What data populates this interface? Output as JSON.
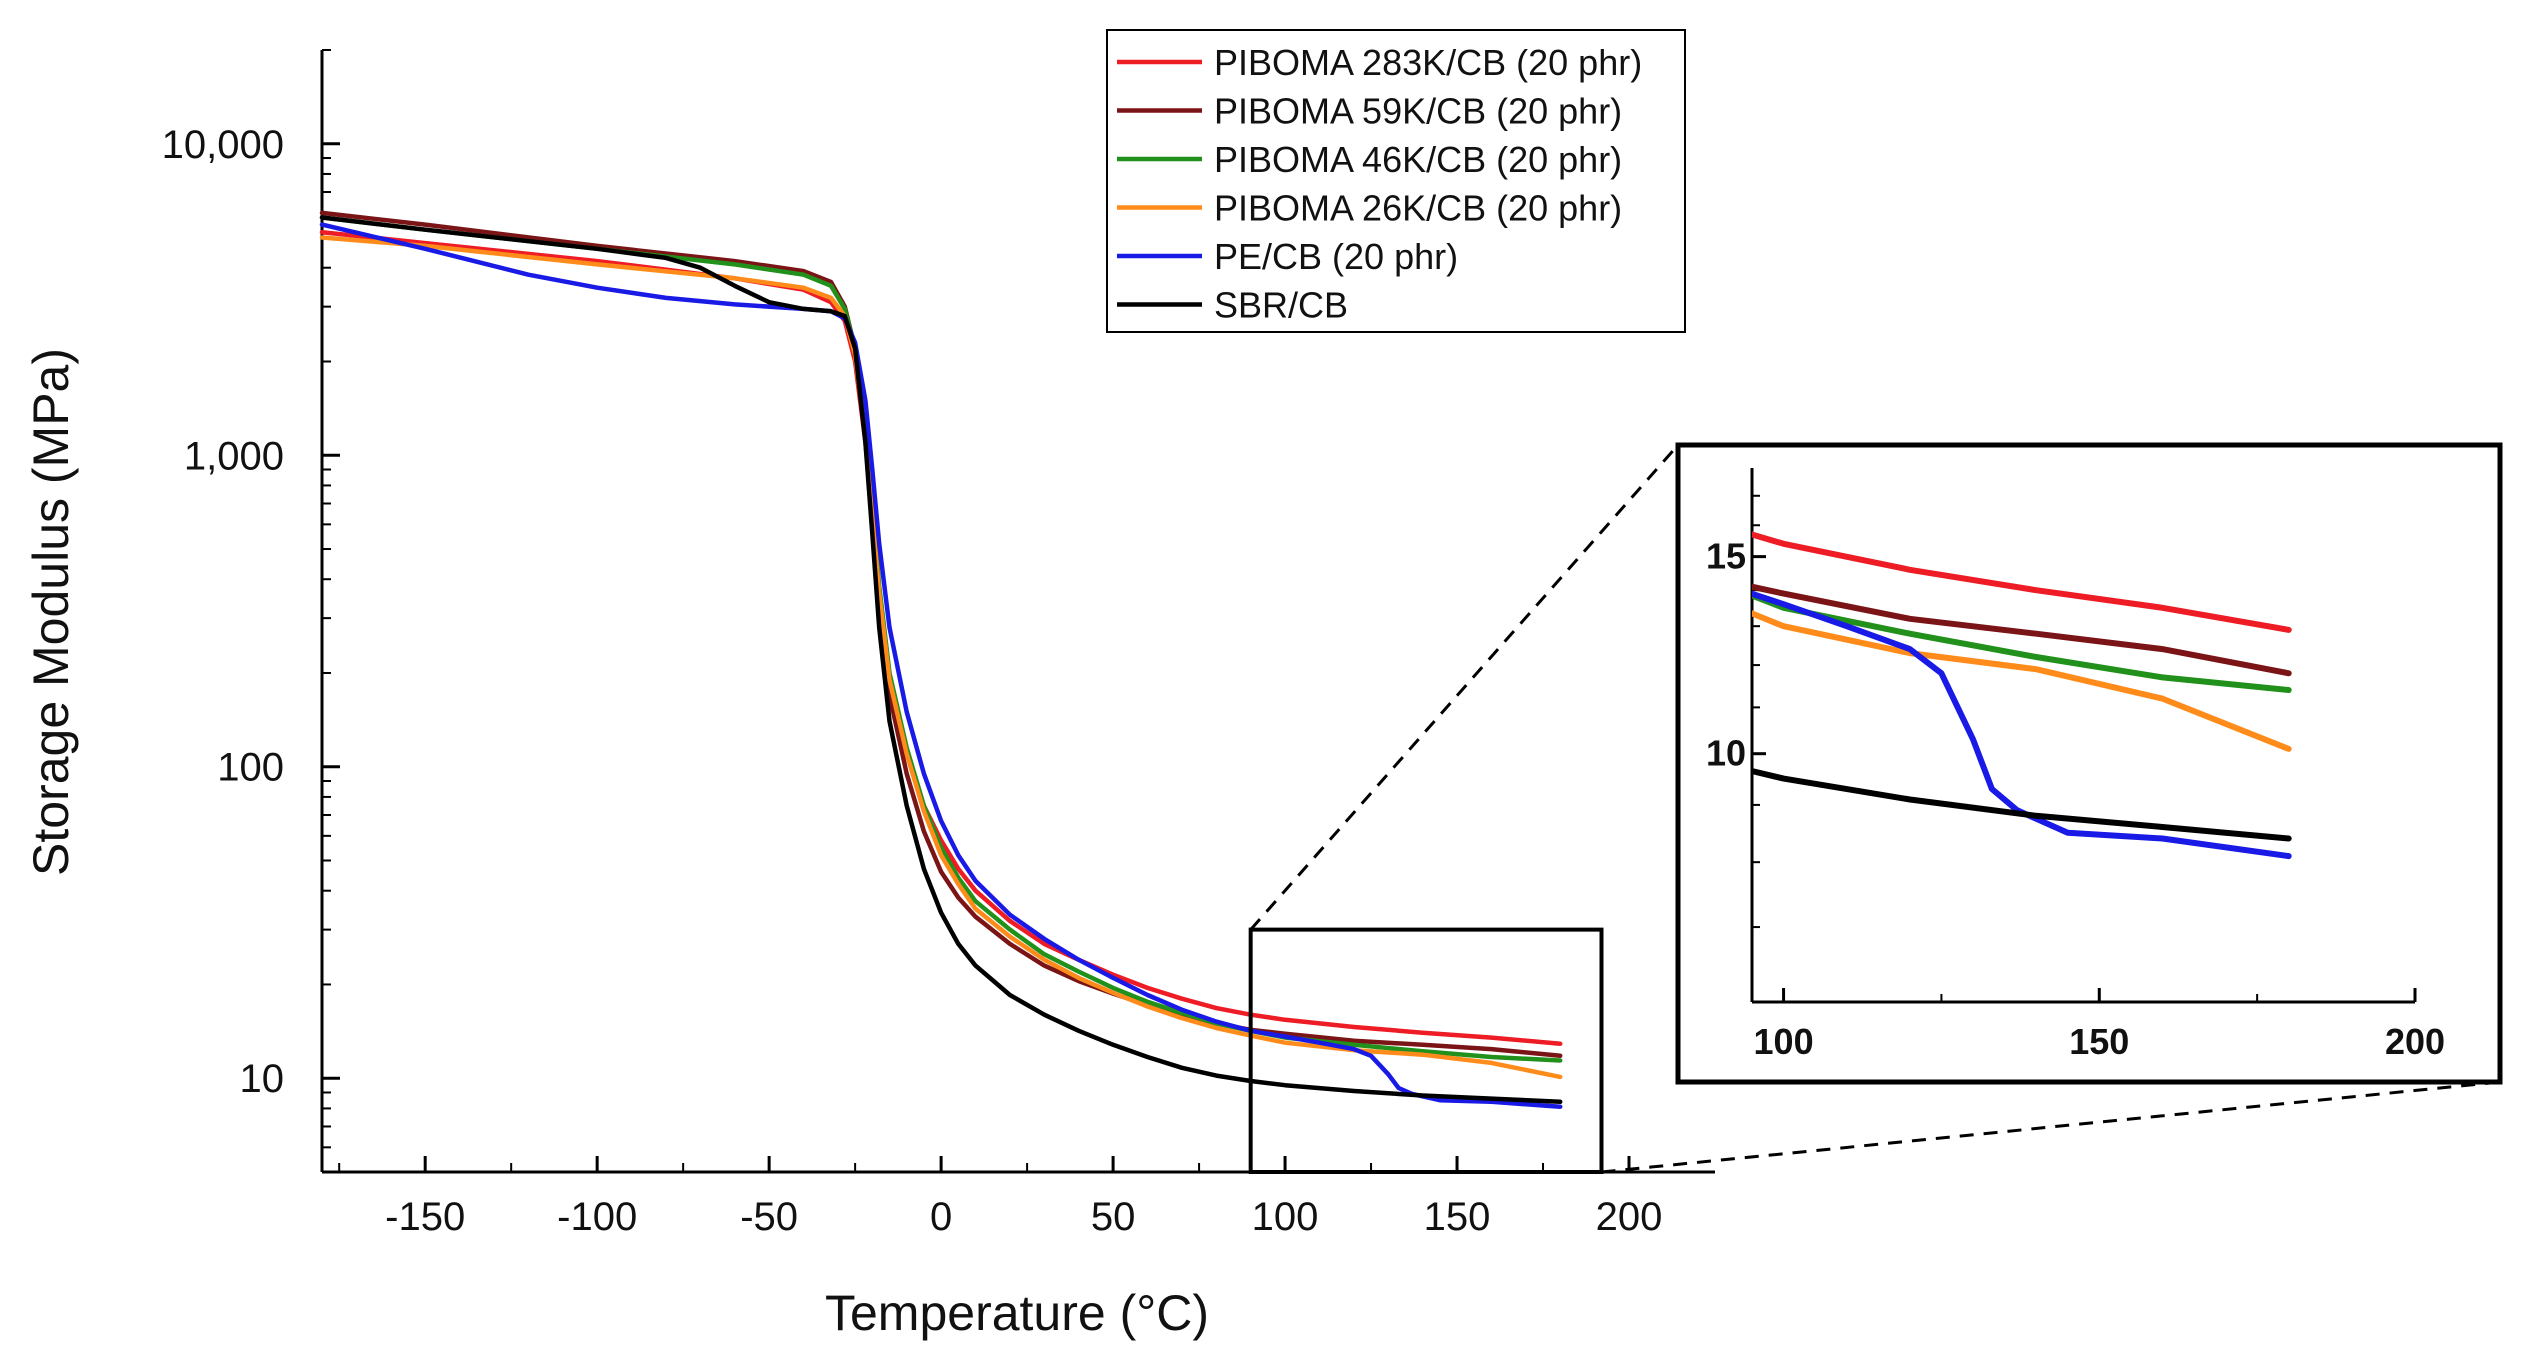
{
  "chart_data": {
    "type": "line",
    "title": "",
    "xlabel": "Temperature (°C)",
    "ylabel": "Storage Modulus (MPa)",
    "xlim": [
      -180,
      225
    ],
    "ylim": [
      5,
      20000
    ],
    "yscale": "log",
    "xticks": [
      -150,
      -100,
      -50,
      0,
      50,
      100,
      150,
      200
    ],
    "xtick_labels": [
      "-150",
      "-100",
      "-50",
      "0",
      "50",
      "100",
      "150",
      "200"
    ],
    "yticks": [
      10,
      100,
      1000,
      10000
    ],
    "ytick_labels": [
      "10",
      "100",
      "1,000",
      "10,000"
    ],
    "legend_position": "top-center",
    "series": [
      {
        "name": "PIBOMA 283K/CB (20 phr)",
        "color": "#ee1c25",
        "points": [
          [
            -180,
            5200
          ],
          [
            -150,
            4800
          ],
          [
            -100,
            4200
          ],
          [
            -60,
            3700
          ],
          [
            -40,
            3400
          ],
          [
            -32,
            3100
          ],
          [
            -28,
            2700
          ],
          [
            -25,
            2000
          ],
          [
            -22,
            1100
          ],
          [
            -20,
            620
          ],
          [
            -18,
            350
          ],
          [
            -15,
            190
          ],
          [
            -10,
            110
          ],
          [
            -5,
            75
          ],
          [
            0,
            58
          ],
          [
            5,
            47
          ],
          [
            10,
            40
          ],
          [
            20,
            32
          ],
          [
            30,
            27
          ],
          [
            40,
            24
          ],
          [
            50,
            21.5
          ],
          [
            60,
            19.5
          ],
          [
            70,
            18
          ],
          [
            80,
            16.8
          ],
          [
            90,
            16
          ],
          [
            100,
            15.4
          ],
          [
            120,
            14.6
          ],
          [
            140,
            14
          ],
          [
            160,
            13.5
          ],
          [
            180,
            12.9
          ]
        ]
      },
      {
        "name": "PIBOMA 59K/CB (20 phr)",
        "color": "#7b1416",
        "points": [
          [
            -180,
            6000
          ],
          [
            -150,
            5500
          ],
          [
            -100,
            4700
          ],
          [
            -60,
            4200
          ],
          [
            -40,
            3900
          ],
          [
            -32,
            3600
          ],
          [
            -28,
            3000
          ],
          [
            -25,
            2200
          ],
          [
            -22,
            1200
          ],
          [
            -20,
            650
          ],
          [
            -18,
            340
          ],
          [
            -15,
            170
          ],
          [
            -10,
            95
          ],
          [
            -5,
            62
          ],
          [
            0,
            46
          ],
          [
            5,
            38
          ],
          [
            10,
            33
          ],
          [
            20,
            27
          ],
          [
            30,
            23
          ],
          [
            40,
            20.5
          ],
          [
            50,
            18.7
          ],
          [
            60,
            17.2
          ],
          [
            70,
            16
          ],
          [
            80,
            15
          ],
          [
            90,
            14.3
          ],
          [
            100,
            13.9
          ],
          [
            120,
            13.2
          ],
          [
            140,
            12.8
          ],
          [
            160,
            12.4
          ],
          [
            180,
            11.8
          ]
        ]
      },
      {
        "name": "PIBOMA 46K/CB (20 phr)",
        "color": "#21911c",
        "points": [
          [
            -180,
            5800
          ],
          [
            -150,
            5300
          ],
          [
            -100,
            4600
          ],
          [
            -60,
            4100
          ],
          [
            -40,
            3800
          ],
          [
            -32,
            3500
          ],
          [
            -28,
            2950
          ],
          [
            -25,
            2200
          ],
          [
            -22,
            1250
          ],
          [
            -20,
            700
          ],
          [
            -18,
            380
          ],
          [
            -15,
            200
          ],
          [
            -10,
            115
          ],
          [
            -5,
            75
          ],
          [
            0,
            55
          ],
          [
            5,
            44
          ],
          [
            10,
            37
          ],
          [
            20,
            30
          ],
          [
            30,
            25
          ],
          [
            40,
            22
          ],
          [
            50,
            19.5
          ],
          [
            60,
            17.6
          ],
          [
            70,
            16.2
          ],
          [
            80,
            15
          ],
          [
            90,
            14.2
          ],
          [
            100,
            13.5
          ],
          [
            120,
            12.8
          ],
          [
            140,
            12.2
          ],
          [
            160,
            11.7
          ],
          [
            180,
            11.4
          ]
        ]
      },
      {
        "name": "PIBOMA 26K/CB (20 phr)",
        "color": "#ff8c1a",
        "points": [
          [
            -180,
            5000
          ],
          [
            -150,
            4700
          ],
          [
            -100,
            4100
          ],
          [
            -60,
            3700
          ],
          [
            -40,
            3450
          ],
          [
            -32,
            3200
          ],
          [
            -28,
            2800
          ],
          [
            -25,
            2100
          ],
          [
            -22,
            1150
          ],
          [
            -20,
            640
          ],
          [
            -18,
            360
          ],
          [
            -15,
            190
          ],
          [
            -10,
            110
          ],
          [
            -5,
            72
          ],
          [
            0,
            52
          ],
          [
            5,
            42
          ],
          [
            10,
            35
          ],
          [
            20,
            28.5
          ],
          [
            30,
            24
          ],
          [
            40,
            21
          ],
          [
            50,
            18.8
          ],
          [
            60,
            17
          ],
          [
            70,
            15.6
          ],
          [
            80,
            14.5
          ],
          [
            90,
            13.7
          ],
          [
            100,
            13
          ],
          [
            120,
            12.3
          ],
          [
            140,
            11.9
          ],
          [
            160,
            11.2
          ],
          [
            180,
            10.1
          ]
        ]
      },
      {
        "name": "PE/CB (20 phr)",
        "color": "#1a1ae6",
        "points": [
          [
            -180,
            5500
          ],
          [
            -150,
            4600
          ],
          [
            -120,
            3800
          ],
          [
            -100,
            3450
          ],
          [
            -80,
            3200
          ],
          [
            -60,
            3050
          ],
          [
            -40,
            2950
          ],
          [
            -32,
            2900
          ],
          [
            -28,
            2750
          ],
          [
            -25,
            2300
          ],
          [
            -22,
            1500
          ],
          [
            -20,
            900
          ],
          [
            -18,
            520
          ],
          [
            -15,
            280
          ],
          [
            -10,
            150
          ],
          [
            -5,
            95
          ],
          [
            0,
            67
          ],
          [
            5,
            52
          ],
          [
            10,
            43
          ],
          [
            20,
            33.5
          ],
          [
            30,
            28
          ],
          [
            40,
            24
          ],
          [
            50,
            21
          ],
          [
            60,
            18.5
          ],
          [
            70,
            16.6
          ],
          [
            80,
            15.2
          ],
          [
            90,
            14.2
          ],
          [
            100,
            13.6
          ],
          [
            110,
            13
          ],
          [
            120,
            12.4
          ],
          [
            125,
            11.8
          ],
          [
            130,
            10.3
          ],
          [
            133,
            9.3
          ],
          [
            137,
            8.9
          ],
          [
            145,
            8.5
          ],
          [
            160,
            8.4
          ],
          [
            180,
            8.1
          ]
        ]
      },
      {
        "name": "SBR/CB",
        "color": "#000000",
        "points": [
          [
            -180,
            5800
          ],
          [
            -150,
            5300
          ],
          [
            -100,
            4600
          ],
          [
            -80,
            4300
          ],
          [
            -70,
            4000
          ],
          [
            -60,
            3500
          ],
          [
            -50,
            3100
          ],
          [
            -40,
            2950
          ],
          [
            -32,
            2900
          ],
          [
            -28,
            2800
          ],
          [
            -25,
            2200
          ],
          [
            -22,
            1100
          ],
          [
            -20,
            560
          ],
          [
            -18,
            280
          ],
          [
            -15,
            140
          ],
          [
            -10,
            75
          ],
          [
            -5,
            47
          ],
          [
            0,
            34
          ],
          [
            5,
            27
          ],
          [
            10,
            23
          ],
          [
            20,
            18.5
          ],
          [
            30,
            16
          ],
          [
            40,
            14.2
          ],
          [
            50,
            12.8
          ],
          [
            60,
            11.7
          ],
          [
            70,
            10.8
          ],
          [
            80,
            10.2
          ],
          [
            90,
            9.8
          ],
          [
            100,
            9.5
          ],
          [
            120,
            9.1
          ],
          [
            140,
            8.8
          ],
          [
            160,
            8.6
          ],
          [
            180,
            8.4
          ]
        ]
      }
    ],
    "inset": {
      "xlim": [
        95,
        200
      ],
      "ylim": [
        6,
        18
      ],
      "xticks": [
        100,
        150,
        200
      ],
      "xtick_labels": [
        "100",
        "150",
        "200"
      ],
      "yticks": [
        10,
        15
      ],
      "ytick_labels": [
        "10",
        "15"
      ],
      "zoom_region": {
        "x": [
          90,
          192
        ],
        "y": [
          5,
          30
        ]
      }
    }
  }
}
